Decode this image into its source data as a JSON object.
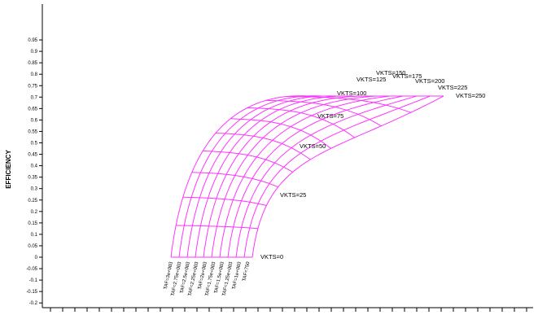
{
  "chart_data": {
    "type": "line",
    "ylabel": "EFFICIENCY",
    "ylim": [
      -0.2,
      0.95
    ],
    "yticks": [
      "0.95",
      "0.9",
      "0.85",
      "0.8",
      "0.75",
      "0.7",
      "0.65",
      "0.6",
      "0.55",
      "0.5",
      "0.45",
      "0.4",
      "0.35",
      "0.3",
      "0.25",
      "0.2",
      "0.15",
      "0.1",
      "0.05",
      "0",
      "-0.05",
      "-0.1",
      "-0.15",
      "-0.2"
    ],
    "velocity_series": [
      {
        "name": "VKTS=0",
        "label": "VKTS=0",
        "value": 0
      },
      {
        "name": "VKTS=25",
        "label": "VKTS=25",
        "value": 0.25
      },
      {
        "name": "VKTS=50",
        "label": "VKTS=50",
        "value": 0.44
      },
      {
        "name": "VKTS=75",
        "label": "VKTS=75",
        "value": 0.57
      },
      {
        "name": "VKTS=100",
        "label": "VKTS=100",
        "value": 0.64
      },
      {
        "name": "VKTS=125",
        "label": "VKTS=125",
        "value": 0.69
      },
      {
        "name": "VKTS=150",
        "label": "VKTS=150",
        "value": 0.71
      },
      {
        "name": "VKTS=175",
        "label": "VKTS=175",
        "value": 0.715
      },
      {
        "name": "VKTS=200",
        "label": "VKTS=200",
        "value": 0.71
      },
      {
        "name": "VKTS=225",
        "label": "VKTS=225",
        "value": 0.68
      },
      {
        "name": "VKTS=250",
        "label": "VKTS=250",
        "value": 0.65
      }
    ],
    "tap_labels": [
      "TAF=3e+003",
      "TAF=2.75e+003",
      "TAF=2.5e+003",
      "TAF=2.25e+003",
      "TAF=2e+003",
      "TAF=1.75e+003",
      "TAF=1.5e+003",
      "TAF=1.25e+003",
      "TAF=1e+003",
      "TAF=750"
    ],
    "grid": false,
    "line_color": "#ff33ff"
  }
}
